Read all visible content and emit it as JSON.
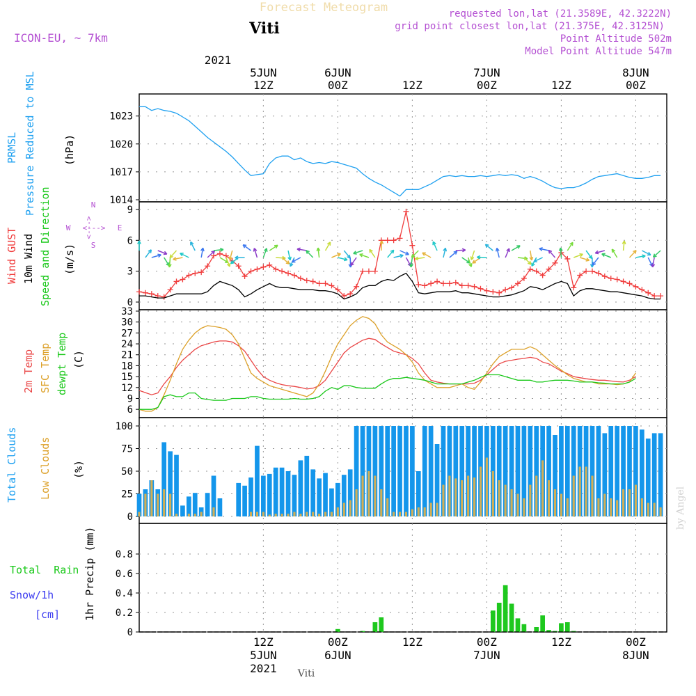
{
  "header": {
    "subtitle": "Forecast Meteogram",
    "title": "Viti",
    "model": "ICON-EU, ~ 7km",
    "requested": "requested lon,lat (21.3589E, 42.3222N)",
    "gridpoint": "grid point closest lon,lat (21.375E, 42.3125N)",
    "point_alt": "Point Altitude 502m",
    "model_alt": "Model Point Altitude 547m"
  },
  "footer": {
    "station": "Viti",
    "credit": "by Angel"
  },
  "colors": {
    "pressure": "#1ea0f0",
    "gust": "#f03c3c",
    "wind": "#000000",
    "dir": "#19c819",
    "temp": "#ea4646",
    "sfc": "#dca028",
    "dew": "#19c819",
    "total_clouds": "#1496eb",
    "low_clouds": "#d2af55",
    "rain": "#1ec81e",
    "snow": "#3c3cf0",
    "compass": "#b450d2",
    "label_purple": "#a050c8",
    "grid": "#969696"
  },
  "time_axis": {
    "top_year": "2021",
    "ticks": [
      {
        "t": 20,
        "hour": "12Z",
        "date": "5JUN",
        "year": "2021"
      },
      {
        "t": 32,
        "hour": "00Z",
        "date": "6JUN",
        "year": ""
      },
      {
        "t": 44,
        "hour": "12Z",
        "date": "",
        "year": ""
      },
      {
        "t": 56,
        "hour": "00Z",
        "date": "7JUN",
        "year": ""
      },
      {
        "t": 68,
        "hour": "12Z",
        "date": "",
        "year": ""
      },
      {
        "t": 80,
        "hour": "00Z",
        "date": "8JUN",
        "year": ""
      }
    ]
  },
  "labels": {
    "prmsl_1": "PRMSL",
    "prmsl_2": "Pressure Reduced to MSL",
    "prmsl_unit": "(hPa)",
    "gust": "Wind GUST",
    "wind10": "10m Wind",
    "dirlabel": "Speed and Direction",
    "wind_unit": "(m/s)",
    "compass_n": "N",
    "compass_s": "S",
    "compass_w": "W",
    "compass_e": "E",
    "compass_h": "<--->",
    "compass_v": "<--->",
    "temp2m": "2m Temp",
    "sfc": "SFC Temp",
    "dew": "dewpt Temp",
    "temp_unit": "(C)",
    "total_clouds": "Total Clouds",
    "low_clouds": "Low Clouds",
    "clouds_unit": "(%)",
    "rain_legend": "Total  Rain",
    "snow_legend": "Snow/1h",
    "cm": "[cm]",
    "precip_unit": "1hr Precip (mm)"
  },
  "chart_data": [
    {
      "type": "line",
      "title": "PRMSL Pressure Reduced to MSL",
      "ylabel": "hPa",
      "ylim": [
        1014,
        1025
      ],
      "yticks": [
        "1014",
        "1017",
        "1020",
        "1023"
      ],
      "x_start_hours": 0,
      "x_step_hours": 1,
      "series": [
        {
          "name": "PRMSL",
          "values": [
            1024.0,
            1024.0,
            1023.6,
            1023.8,
            1023.6,
            1023.5,
            1023.3,
            1022.9,
            1022.5,
            1021.9,
            1021.3,
            1020.7,
            1020.2,
            1019.7,
            1019.2,
            1018.6,
            1017.9,
            1017.2,
            1016.6,
            1016.7,
            1016.8,
            1017.9,
            1018.5,
            1018.7,
            1018.7,
            1018.3,
            1018.5,
            1018.1,
            1017.9,
            1018.0,
            1017.9,
            1018.1,
            1018.0,
            1017.8,
            1017.6,
            1017.4,
            1016.8,
            1016.3,
            1015.9,
            1015.6,
            1015.2,
            1014.8,
            1014.4,
            1015.1,
            1015.1,
            1015.1,
            1015.4,
            1015.7,
            1016.1,
            1016.5,
            1016.6,
            1016.5,
            1016.6,
            1016.5,
            1016.5,
            1016.6,
            1016.5,
            1016.6,
            1016.7,
            1016.6,
            1016.7,
            1016.6,
            1016.3,
            1016.5,
            1016.3,
            1016.0,
            1015.6,
            1015.3,
            1015.2,
            1015.3,
            1015.3,
            1015.5,
            1015.8,
            1016.2,
            1016.5,
            1016.6,
            1016.7,
            1016.8,
            1016.6,
            1016.4,
            1016.3,
            1016.3,
            1016.4,
            1016.6,
            1016.6
          ]
        }
      ]
    },
    {
      "type": "line",
      "title": "Wind GUST, 10m Wind Speed and Direction",
      "ylabel": "m/s",
      "ylim": [
        0,
        9.5
      ],
      "yticks": [
        "0",
        "3",
        "6",
        "9"
      ],
      "x_start_hours": 0,
      "x_step_hours": 1,
      "series": [
        {
          "name": "Wind GUST",
          "values": [
            1.0,
            0.9,
            0.8,
            0.6,
            0.5,
            1.2,
            2.0,
            2.2,
            2.6,
            2.8,
            2.9,
            3.5,
            4.5,
            4.7,
            4.5,
            4.0,
            3.5,
            2.5,
            3.0,
            3.2,
            3.4,
            3.6,
            3.2,
            3.0,
            2.8,
            2.6,
            2.3,
            2.1,
            2.0,
            1.8,
            1.8,
            1.6,
            1.2,
            0.6,
            0.8,
            1.5,
            3.0,
            3.0,
            3.0,
            6.0,
            6.0,
            6.0,
            6.2,
            8.8,
            5.5,
            1.7,
            1.6,
            1.8,
            2.0,
            1.8,
            1.8,
            1.9,
            1.6,
            1.6,
            1.5,
            1.3,
            1.1,
            1.0,
            0.9,
            1.2,
            1.4,
            1.8,
            2.3,
            3.2,
            3.0,
            2.6,
            3.2,
            3.8,
            4.8,
            4.2,
            1.4,
            2.6,
            3.0,
            3.0,
            2.8,
            2.5,
            2.3,
            2.2,
            2.0,
            1.8,
            1.5,
            1.2,
            0.9,
            0.6,
            0.6
          ]
        },
        {
          "name": "10m Wind",
          "values": [
            0.6,
            0.6,
            0.5,
            0.4,
            0.4,
            0.6,
            0.8,
            0.8,
            0.8,
            0.8,
            0.8,
            1.0,
            1.6,
            2.0,
            1.8,
            1.6,
            1.2,
            0.5,
            0.8,
            1.2,
            1.5,
            1.8,
            1.5,
            1.4,
            1.4,
            1.3,
            1.2,
            1.2,
            1.2,
            1.1,
            1.1,
            1.0,
            0.8,
            0.3,
            0.5,
            0.8,
            1.4,
            1.6,
            1.6,
            2.0,
            2.2,
            2.1,
            2.5,
            2.8,
            2.0,
            0.9,
            0.8,
            0.9,
            1.0,
            1.0,
            1.0,
            1.1,
            0.9,
            0.9,
            0.8,
            0.7,
            0.6,
            0.5,
            0.5,
            0.6,
            0.7,
            0.9,
            1.1,
            1.5,
            1.4,
            1.2,
            1.5,
            1.8,
            2.0,
            1.8,
            0.6,
            1.1,
            1.3,
            1.3,
            1.2,
            1.1,
            1.0,
            1.0,
            0.9,
            0.8,
            0.7,
            0.6,
            0.4,
            0.3,
            0.3
          ]
        }
      ]
    },
    {
      "type": "line",
      "title": "2m Temp, SFC Temp, dewpt Temp",
      "ylabel": "C",
      "ylim": [
        5,
        33
      ],
      "yticks": [
        "6",
        "9",
        "12",
        "15",
        "18",
        "21",
        "24",
        "27",
        "30",
        "33"
      ],
      "x_start_hours": 0,
      "x_step_hours": 1,
      "series": [
        {
          "name": "2m Temp",
          "values": [
            11.2,
            10.6,
            10.0,
            10.5,
            13.0,
            15.0,
            17.5,
            19.5,
            21.0,
            22.5,
            23.5,
            24.0,
            24.5,
            24.8,
            24.8,
            24.5,
            23.5,
            22.0,
            19.5,
            17.0,
            15.0,
            14.0,
            13.3,
            12.8,
            12.5,
            12.3,
            12.0,
            11.6,
            11.8,
            12.5,
            14.0,
            16.5,
            19.0,
            21.5,
            23.0,
            24.0,
            25.0,
            25.5,
            25.2,
            24.0,
            23.0,
            22.0,
            21.5,
            21.0,
            20.0,
            18.5,
            16.0,
            14.0,
            13.5,
            13.2,
            13.0,
            13.0,
            13.0,
            13.0,
            13.2,
            14.0,
            15.5,
            17.0,
            18.5,
            19.2,
            19.5,
            19.8,
            20.0,
            20.3,
            20.0,
            19.0,
            18.5,
            17.5,
            16.5,
            15.8,
            15.0,
            14.7,
            14.4,
            14.2,
            14.0,
            14.0,
            13.8,
            13.6,
            13.5,
            14.0,
            15.0
          ]
        },
        {
          "name": "SFC Temp",
          "values": [
            6.0,
            5.5,
            5.5,
            6.5,
            10.0,
            14.0,
            18.5,
            22.5,
            25.0,
            27.0,
            28.3,
            29.0,
            28.8,
            28.5,
            28.0,
            26.5,
            24.0,
            20.0,
            16.0,
            14.5,
            13.5,
            12.5,
            12.0,
            11.5,
            11.0,
            10.5,
            10.0,
            9.5,
            10.5,
            13.0,
            16.5,
            20.5,
            24.0,
            26.5,
            29.0,
            30.5,
            31.5,
            31.0,
            29.5,
            26.5,
            24.5,
            23.5,
            22.5,
            21.0,
            19.0,
            16.0,
            14.0,
            13.0,
            12.0,
            12.0,
            12.0,
            12.5,
            13.0,
            12.0,
            11.5,
            13.5,
            16.0,
            18.5,
            20.5,
            21.5,
            22.5,
            22.5,
            22.5,
            23.2,
            22.5,
            21.0,
            19.5,
            18.0,
            16.8,
            15.5,
            14.5,
            14.0,
            13.5,
            13.5,
            13.0,
            13.0,
            13.0,
            12.8,
            13.0,
            13.5,
            16.0
          ]
        },
        {
          "name": "dewpt Temp",
          "values": [
            6.0,
            6.0,
            6.0,
            6.5,
            9.5,
            10.0,
            9.5,
            9.5,
            10.5,
            10.5,
            9.0,
            8.7,
            8.5,
            8.5,
            8.5,
            9.0,
            9.0,
            9.0,
            9.5,
            9.5,
            9.0,
            8.8,
            8.8,
            8.8,
            8.8,
            9.0,
            8.8,
            8.8,
            9.0,
            9.5,
            11.0,
            12.0,
            11.5,
            12.5,
            12.5,
            12.0,
            11.8,
            11.8,
            11.8,
            13.0,
            14.0,
            14.5,
            14.5,
            14.8,
            14.5,
            14.3,
            14.0,
            13.5,
            13.0,
            13.0,
            13.0,
            13.0,
            13.0,
            13.5,
            14.0,
            14.8,
            15.5,
            15.5,
            15.5,
            15.0,
            14.5,
            14.0,
            14.0,
            14.0,
            13.5,
            13.5,
            13.8,
            14.0,
            14.0,
            14.0,
            13.8,
            13.5,
            13.5,
            13.5,
            13.3,
            13.2,
            13.0,
            13.0,
            13.0,
            13.5,
            14.5
          ]
        }
      ]
    },
    {
      "type": "bar",
      "title": "Total Clouds, Low Clouds",
      "ylabel": "%",
      "ylim": [
        0,
        100
      ],
      "yticks": [
        "0",
        "25",
        "50",
        "75",
        "100"
      ],
      "x_start_hours": 0,
      "x_step_hours": 1,
      "series": [
        {
          "name": "Total Clouds",
          "values": [
            25,
            30,
            40,
            30,
            82,
            72,
            68,
            12,
            22,
            26,
            10,
            26,
            45,
            20,
            0,
            0,
            37,
            34,
            43,
            78,
            45,
            47,
            54,
            54,
            50,
            46,
            62,
            67,
            52,
            42,
            48,
            31,
            37,
            46,
            52,
            100,
            100,
            100,
            100,
            100,
            100,
            100,
            100,
            100,
            100,
            50,
            100,
            100,
            80,
            100,
            100,
            100,
            100,
            100,
            100,
            100,
            100,
            100,
            100,
            100,
            100,
            100,
            100,
            100,
            100,
            100,
            100,
            90,
            100,
            100,
            100,
            100,
            100,
            100,
            100,
            92,
            100,
            100,
            100,
            100,
            100,
            96,
            86,
            92,
            92,
            92,
            88,
            90
          ]
        },
        {
          "name": "Low Clouds",
          "values": [
            5,
            25,
            40,
            25,
            30,
            25,
            3,
            0,
            3,
            3,
            5,
            0,
            10,
            0,
            0,
            0,
            0,
            0,
            5,
            5,
            5,
            2,
            3,
            3,
            3,
            5,
            3,
            5,
            5,
            3,
            5,
            5,
            10,
            15,
            18,
            30,
            45,
            50,
            45,
            30,
            20,
            5,
            5,
            5,
            8,
            10,
            10,
            15,
            15,
            35,
            45,
            42,
            40,
            45,
            43,
            55,
            65,
            50,
            40,
            35,
            30,
            25,
            20,
            35,
            45,
            62,
            40,
            30,
            25,
            20,
            45,
            55,
            55,
            45,
            20,
            25,
            20,
            18,
            30,
            30,
            35,
            20,
            15,
            15,
            10,
            30,
            35
          ]
        }
      ]
    },
    {
      "type": "bar",
      "title": "1hr Precip (mm)",
      "ylabel": "1hr Precip (mm)",
      "ylim": [
        0,
        1.0
      ],
      "yticks": [
        "0",
        "0.2",
        "0.4",
        "0.6",
        "0.8"
      ],
      "x_start_hours": 0,
      "x_step_hours": 1,
      "series": [
        {
          "name": "Total Rain",
          "values": [
            0,
            0,
            0,
            0,
            0,
            0,
            0,
            0,
            0,
            0,
            0,
            0,
            0,
            0,
            0,
            0,
            0,
            0,
            0,
            0,
            0,
            0,
            0,
            0,
            0,
            0,
            0,
            0,
            0,
            0,
            0,
            0,
            0.03,
            0,
            0,
            0,
            0.01,
            0,
            0.1,
            0.15,
            0,
            0,
            0,
            0,
            0,
            0,
            0,
            0,
            0,
            0,
            0,
            0,
            0,
            0,
            0,
            0,
            0,
            0.22,
            0.3,
            0.48,
            0.29,
            0.14,
            0.08,
            0,
            0.05,
            0.17,
            0.02,
            0.01,
            0.09,
            0.1,
            0.01,
            0,
            0,
            0,
            0,
            0,
            0,
            0,
            0,
            0,
            0,
            0,
            0,
            0,
            0,
            0,
            0
          ]
        }
      ]
    }
  ]
}
